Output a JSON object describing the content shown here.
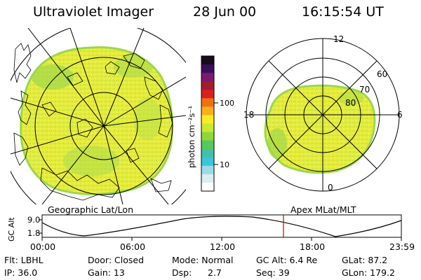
{
  "header": {
    "instrument": "Ultraviolet Imager",
    "date": "28 Jun 00",
    "time": "16:15:54 UT"
  },
  "geo_panel": {
    "caption": "Geographic Lat/Lon"
  },
  "apex_panel": {
    "caption": "Apex MLat/MLT",
    "mlt_labels": {
      "top": "12",
      "bottom": "0",
      "left": "18",
      "right": "6"
    },
    "mlat_labels": [
      "60",
      "70",
      "80"
    ]
  },
  "colorbar": {
    "unit_label": "photon cm⁻²s⁻¹",
    "ticks": [
      "100",
      "10"
    ],
    "colors": [
      "#1a0a1e",
      "#3a0f58",
      "#7a1a6e",
      "#a31b2e",
      "#d8201d",
      "#f07010",
      "#f9b01a",
      "#f8ec22",
      "#c8e832",
      "#8fd63a",
      "#58c85a",
      "#3fc2a8",
      "#3ac6d8",
      "#9adbe6",
      "#d8eef2",
      "#ffffff"
    ]
  },
  "orbit": {
    "ylabel": "GC Alt",
    "yticks": [
      "9.0",
      "1.8"
    ],
    "xticks": [
      "00:00",
      "06:00",
      "12:00",
      "18:00",
      "23:59"
    ],
    "current_marker_color": "#cc0000"
  },
  "status": {
    "flt": "Flt: LBHL",
    "ip": "IP: 36.0",
    "door": "Door: Closed",
    "gain": "Gain: 13",
    "mode": "Mode: Normal",
    "dsp_label": "Dsp:",
    "dsp_value": "2.7",
    "gc_alt": "GC Alt: 6.4 Re",
    "seq": "Seq: 39",
    "glat": "GLat:  87.2",
    "glon": "GLon: 179.2"
  },
  "image_colors": {
    "background_fill": "#e8ee3a",
    "green_patch": "#8ad84a",
    "coast_line": "#000000"
  }
}
